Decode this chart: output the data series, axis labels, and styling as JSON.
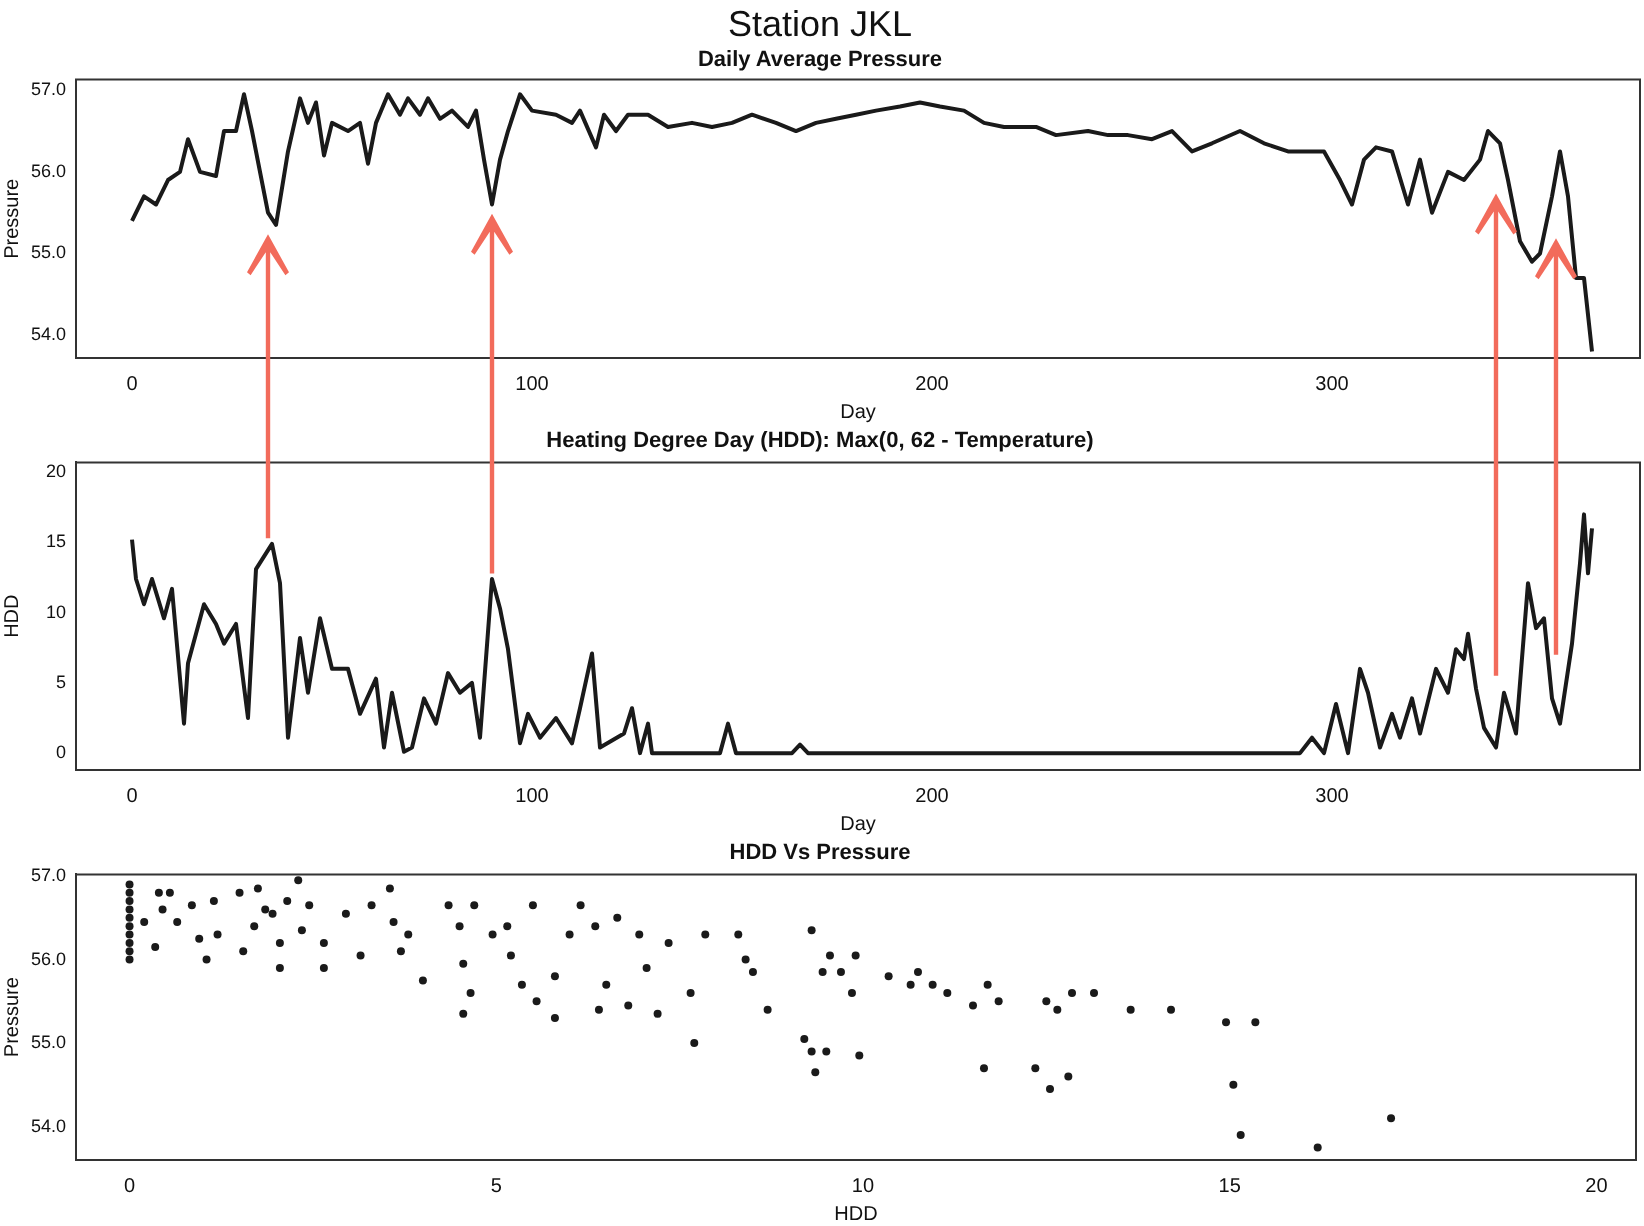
{
  "chart_data": [
    {
      "type": "line",
      "title": "Station JKL",
      "subtitle": "Daily Average Pressure",
      "xlabel": "Day",
      "ylabel": "Pressure",
      "legend": false,
      "marker": "none",
      "line_style": "solid",
      "grid": false,
      "xlim": [
        -14,
        377
      ],
      "xticks": [
        0,
        100,
        200,
        300
      ],
      "ylim": [
        53.72,
        57.13
      ],
      "yticks": [
        {
          "value": 54,
          "label": "54.0"
        },
        {
          "value": 55,
          "label": "55.0"
        },
        {
          "value": 56,
          "label": "56.0"
        },
        {
          "value": 57,
          "label": "57.0"
        }
      ],
      "series": [
        {
          "color": "#1a1a1a",
          "x": [
            0,
            3,
            6,
            9,
            12,
            14,
            17,
            21,
            23,
            26,
            28,
            30,
            34,
            36,
            39,
            42,
            44,
            46,
            48,
            50,
            54,
            57,
            59,
            61,
            64,
            67,
            69,
            72,
            74,
            77,
            80,
            84,
            86,
            88,
            90,
            92,
            94,
            97,
            100,
            106,
            110,
            112,
            116,
            118,
            121,
            124,
            129,
            134,
            140,
            145,
            150,
            155,
            161,
            166,
            171,
            176,
            181,
            186,
            192,
            197,
            202,
            208,
            213,
            218,
            226,
            231,
            239,
            244,
            249,
            255,
            260,
            265,
            270,
            277,
            283,
            289,
            294,
            298,
            302,
            305,
            308,
            311,
            315,
            319,
            322,
            325,
            329,
            333,
            337,
            339,
            342,
            344,
            347,
            350,
            352,
            355,
            357,
            359,
            361,
            363,
            365
          ],
          "values": [
            55.4,
            55.7,
            55.6,
            55.9,
            56.0,
            56.4,
            56.0,
            55.95,
            56.5,
            56.5,
            56.95,
            56.5,
            55.5,
            55.35,
            56.25,
            56.9,
            56.6,
            56.85,
            56.2,
            56.6,
            56.5,
            56.6,
            56.1,
            56.6,
            56.95,
            56.7,
            56.9,
            56.7,
            56.9,
            56.65,
            56.75,
            56.55,
            56.75,
            56.15,
            55.6,
            56.15,
            56.5,
            56.95,
            56.75,
            56.7,
            56.6,
            56.75,
            56.3,
            56.7,
            56.5,
            56.7,
            56.7,
            56.55,
            56.6,
            56.55,
            56.6,
            56.7,
            56.6,
            56.5,
            56.6,
            56.65,
            56.7,
            56.75,
            56.8,
            56.85,
            56.8,
            56.75,
            56.6,
            56.55,
            56.55,
            56.45,
            56.5,
            56.45,
            56.45,
            56.4,
            56.5,
            56.25,
            56.35,
            56.5,
            56.35,
            56.25,
            56.25,
            56.25,
            55.9,
            55.6,
            56.15,
            56.3,
            56.25,
            55.6,
            56.15,
            55.5,
            56.0,
            55.9,
            56.15,
            56.5,
            56.35,
            55.9,
            55.15,
            54.9,
            55.0,
            55.7,
            56.25,
            55.7,
            54.7,
            54.7,
            53.8
          ]
        }
      ]
    },
    {
      "type": "line",
      "title": "Heating Degree Day (HDD): Max(0, 62 - Temperature)",
      "xlabel": "Day",
      "ylabel": "HDD",
      "legend": false,
      "marker": "none",
      "line_style": "solid",
      "grid": false,
      "xlim": [
        -14,
        377
      ],
      "xticks": [
        0,
        100,
        200,
        300
      ],
      "ylim": [
        -1.2,
        20.7
      ],
      "yticks": [
        0,
        5,
        10,
        15,
        20
      ],
      "series": [
        {
          "color": "#1a1a1a",
          "x": [
            0,
            1,
            3,
            5,
            8,
            10,
            13,
            14,
            18,
            21,
            23,
            26,
            29,
            31,
            35,
            37,
            39,
            42,
            44,
            47,
            50,
            54,
            57,
            61,
            63,
            65,
            68,
            70,
            73,
            76,
            79,
            82,
            85,
            87,
            90,
            92,
            94,
            97,
            99,
            102,
            106,
            110,
            112,
            115,
            117,
            123,
            125,
            127,
            129,
            130,
            138,
            147,
            149,
            151,
            165,
            167,
            169,
            292,
            295,
            298,
            301,
            304,
            307,
            309,
            312,
            315,
            317,
            320,
            322,
            326,
            329,
            331,
            333,
            334,
            336,
            338,
            341,
            343,
            346,
            349,
            351,
            353,
            355,
            357,
            360,
            362,
            363,
            364,
            365
          ],
          "values": [
            15.2,
            12.4,
            10.6,
            12.4,
            9.6,
            11.7,
            2.1,
            6.4,
            10.6,
            9.2,
            7.8,
            9.2,
            2.5,
            13.1,
            14.9,
            12.1,
            1.1,
            8.2,
            4.3,
            9.6,
            6.0,
            6.0,
            2.8,
            5.3,
            0.4,
            4.3,
            0.1,
            0.4,
            3.9,
            2.1,
            5.7,
            4.3,
            5.0,
            1.1,
            12.4,
            10.3,
            7.4,
            0.7,
            2.8,
            1.1,
            2.5,
            0.7,
            3.2,
            7.1,
            0.4,
            1.4,
            3.2,
            0,
            2.1,
            0,
            0,
            0,
            2.1,
            0,
            0,
            0.6,
            0,
            0,
            1.1,
            0,
            3.5,
            0,
            6.0,
            4.3,
            0.4,
            2.8,
            1.1,
            3.9,
            1.4,
            6.0,
            4.3,
            7.4,
            6.7,
            8.5,
            4.6,
            1.8,
            0.4,
            4.3,
            1.4,
            12.1,
            8.9,
            9.6,
            3.9,
            2.1,
            7.8,
            13.5,
            17.0,
            12.8,
            16.0
          ]
        }
      ]
    },
    {
      "type": "scatter",
      "title": "HDD Vs Pressure",
      "xlabel": "HDD",
      "ylabel": "Pressure",
      "legend": false,
      "marker": "circle",
      "grid": false,
      "xlim": [
        -0.73,
        20.54
      ],
      "xticks": [
        0,
        5,
        10,
        15,
        20
      ],
      "ylim": [
        53.6,
        57.02
      ],
      "yticks": [
        {
          "value": 54,
          "label": "54.0"
        },
        {
          "value": 55,
          "label": "55.0"
        },
        {
          "value": 56,
          "label": "56.0"
        },
        {
          "value": 57,
          "label": "57.0"
        }
      ],
      "series": [
        {
          "color": "#1a1a1a",
          "x": [
            0,
            0,
            0,
            0,
            0,
            0,
            0,
            0,
            0,
            0,
            0.2,
            0.35,
            0.4,
            0.45,
            0.55,
            0.65,
            0.85,
            0.95,
            1.05,
            1.15,
            1.2,
            1.5,
            1.55,
            1.7,
            1.75,
            1.85,
            1.95,
            2.05,
            2.05,
            2.15,
            2.3,
            2.35,
            2.45,
            2.65,
            2.65,
            2.95,
            3.15,
            3.3,
            3.55,
            3.6,
            3.7,
            3.8,
            4.0,
            4.35,
            4.5,
            4.55,
            4.55,
            4.65,
            4.7,
            4.95,
            5.15,
            5.2,
            5.35,
            5.5,
            5.55,
            5.8,
            5.8,
            6.0,
            6.15,
            6.35,
            6.4,
            6.5,
            6.65,
            6.8,
            6.95,
            7.05,
            7.2,
            7.35,
            7.65,
            7.7,
            7.85,
            8.3,
            8.4,
            8.5,
            8.7,
            9.3,
            9.2,
            9.3,
            9.35,
            9.45,
            9.55,
            9.5,
            9.7,
            9.85,
            9.9,
            9.95,
            10.35,
            10.65,
            10.75,
            10.95,
            11.15,
            11.5,
            11.65,
            11.7,
            11.85,
            12.35,
            12.5,
            12.55,
            12.65,
            12.8,
            12.85,
            13.15,
            13.65,
            14.2,
            14.95,
            15.05,
            15.15,
            15.35,
            16.2,
            17.2
          ],
          "values": [
            56.0,
            56.1,
            56.2,
            56.3,
            56.4,
            56.5,
            56.6,
            56.7,
            56.8,
            56.9,
            56.45,
            56.15,
            56.8,
            56.6,
            56.8,
            56.45,
            56.65,
            56.25,
            56.0,
            56.7,
            56.3,
            56.8,
            56.1,
            56.4,
            56.85,
            56.6,
            56.55,
            56.2,
            55.9,
            56.7,
            56.95,
            56.35,
            56.65,
            56.2,
            55.9,
            56.55,
            56.05,
            56.65,
            56.85,
            56.45,
            56.1,
            56.3,
            55.75,
            56.65,
            56.4,
            55.95,
            55.35,
            55.6,
            56.65,
            56.3,
            56.4,
            56.05,
            55.7,
            56.65,
            55.5,
            55.8,
            55.3,
            56.3,
            56.65,
            56.4,
            55.4,
            55.7,
            56.5,
            55.45,
            56.3,
            55.9,
            55.35,
            56.2,
            55.6,
            55.0,
            56.3,
            56.3,
            56.0,
            55.85,
            55.4,
            56.35,
            55.05,
            54.9,
            54.65,
            55.85,
            56.05,
            54.9,
            55.85,
            55.6,
            56.05,
            54.85,
            55.8,
            55.7,
            55.85,
            55.7,
            55.6,
            55.45,
            54.7,
            55.7,
            55.5,
            54.7,
            55.5,
            54.45,
            55.4,
            54.6,
            55.6,
            55.6,
            55.4,
            55.4,
            55.25,
            54.5,
            53.9,
            55.25,
            53.75,
            54.1
          ]
        }
      ]
    }
  ]
}
